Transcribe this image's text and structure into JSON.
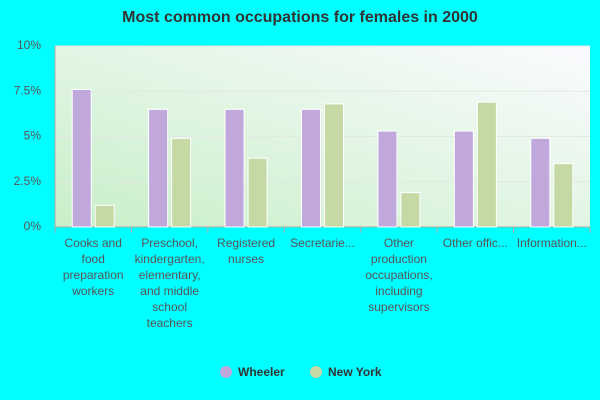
{
  "chart_data": {
    "type": "bar",
    "title": "Most common occupations for females in 2000",
    "categories": [
      "Cooks and food preparation workers",
      "Preschool, kindergarten, elementary, and middle school teachers",
      "Registered nurses",
      "Secretarie...",
      "Other production occupations, including supervisors",
      "Other offic...",
      "Information..."
    ],
    "series": [
      {
        "name": "Wheeler",
        "color": "#c0a8dc",
        "values": [
          7.6,
          6.5,
          6.5,
          6.5,
          5.3,
          5.3,
          4.9
        ]
      },
      {
        "name": "New York",
        "color": "#c4d9a4",
        "values": [
          1.2,
          4.9,
          3.8,
          6.8,
          1.9,
          6.9,
          3.5
        ]
      }
    ],
    "ylim": [
      0,
      10
    ],
    "yticks": [
      {
        "value": 0,
        "label": "0%"
      },
      {
        "value": 2.5,
        "label": "2.5%"
      },
      {
        "value": 5,
        "label": "5%"
      },
      {
        "value": 7.5,
        "label": "7.5%"
      },
      {
        "value": 10,
        "label": "10%"
      }
    ],
    "grid": true
  }
}
